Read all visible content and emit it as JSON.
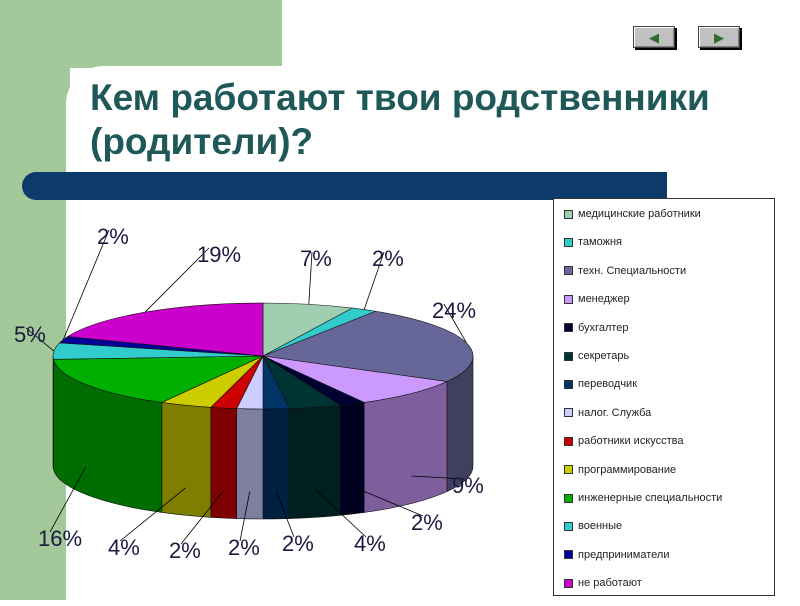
{
  "slide": {
    "title_line1": "Кем работают твои родственники",
    "title_line2": "(родители)?",
    "nav": {
      "prev_icon": "arrow-left-icon",
      "next_icon": "arrow-right-icon"
    }
  },
  "chart_data": {
    "type": "pie",
    "style": "3d exploded-perspective pie",
    "legend_position": "right",
    "categories": [
      "медицинские работники",
      "таможня",
      "техн. Специальности",
      "менеджер",
      "бухгалтер",
      "секретарь",
      "переводчик",
      "налог. Служба",
      "работники искусства",
      "программирование",
      "инженерные специальности",
      "военные",
      "предприниматели",
      "не работают"
    ],
    "values": [
      7,
      2,
      24,
      9,
      2,
      4,
      2,
      2,
      2,
      4,
      16,
      5,
      2,
      19
    ],
    "labels": [
      "7%",
      "2%",
      "24%",
      "9%",
      "2%",
      "4%",
      "2%",
      "2%",
      "2%",
      "4%",
      "16%",
      "5%",
      "2%",
      "19%"
    ],
    "colors": [
      "#9fcfb0",
      "#33cccc",
      "#666699",
      "#cc99ff",
      "#000033",
      "#003333",
      "#003366",
      "#ccccff",
      "#cc0000",
      "#cccc00",
      "#00b000",
      "#33cccc",
      "#000099",
      "#cc00cc"
    ]
  }
}
